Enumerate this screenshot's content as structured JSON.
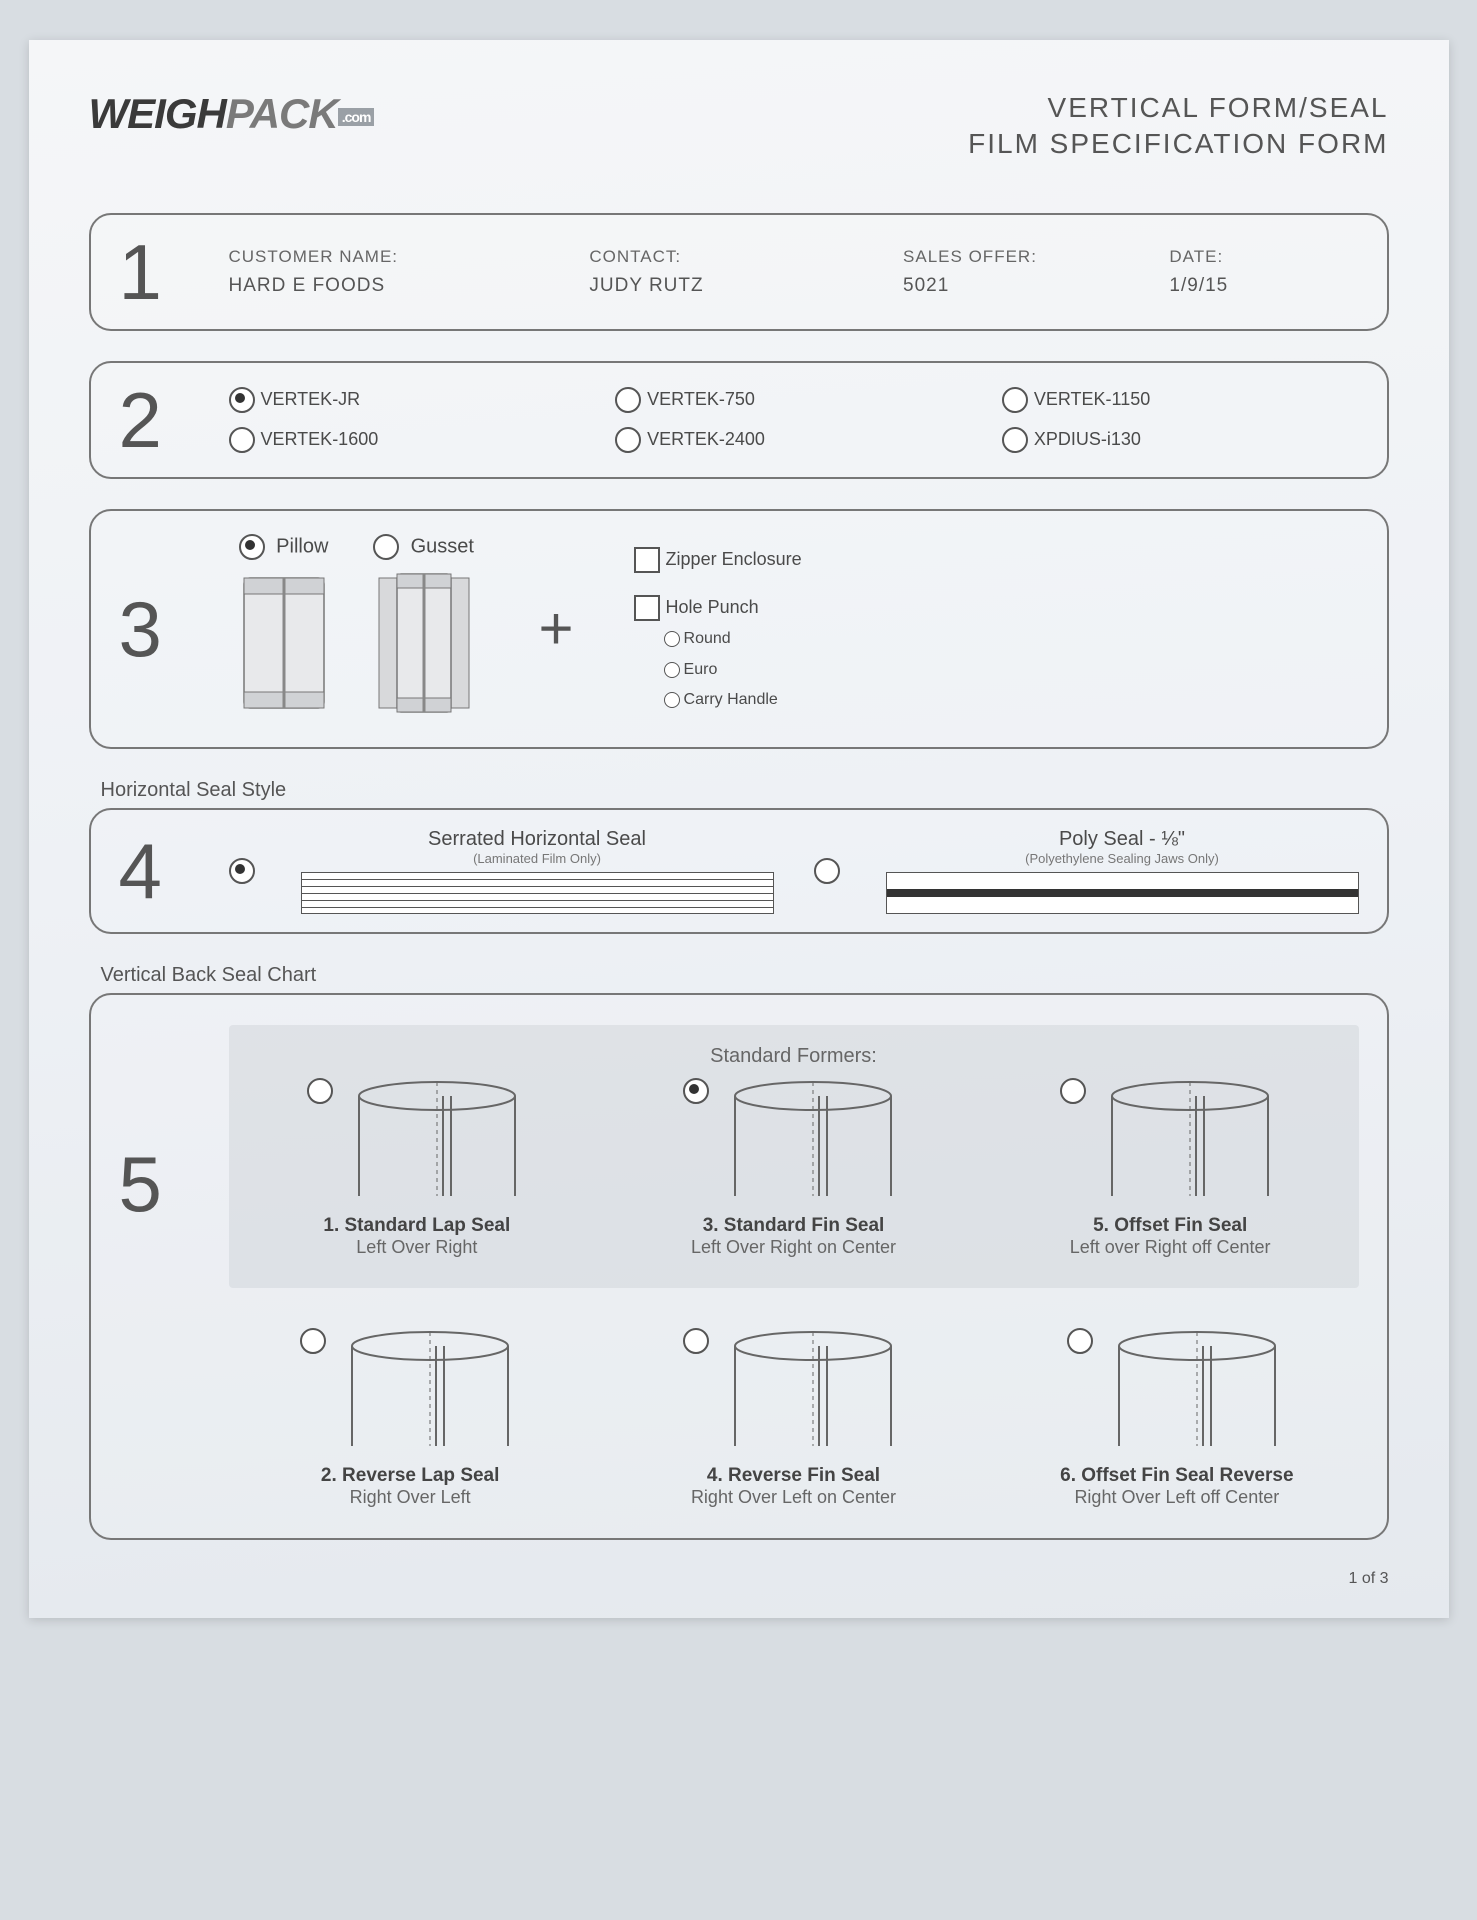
{
  "header": {
    "logo_part1": "WEIGH",
    "logo_part2": "PACK",
    "logo_suffix": ".com",
    "title_line1": "VERTICAL FORM/SEAL",
    "title_line2": "FILM SPECIFICATION FORM"
  },
  "section1": {
    "num": "1",
    "customer_label": "CUSTOMER NAME:",
    "customer_value": "HARD E FOODS",
    "contact_label": "CONTACT:",
    "contact_value": "JUDY RUTZ",
    "sales_label": "SALES OFFER:",
    "sales_value": "5021",
    "date_label": "DATE:",
    "date_value": "1/9/15"
  },
  "section2": {
    "num": "2",
    "options": [
      {
        "label": "VERTEK-JR",
        "checked": true
      },
      {
        "label": "VERTEK-750",
        "checked": false
      },
      {
        "label": "VERTEK-1150",
        "checked": false
      },
      {
        "label": "VERTEK-1600",
        "checked": false
      },
      {
        "label": "VERTEK-2400",
        "checked": false
      },
      {
        "label": "XPDIUS-i130",
        "checked": false
      }
    ]
  },
  "section3": {
    "num": "3",
    "pillow_label": "Pillow",
    "pillow_checked": true,
    "gusset_label": "Gusset",
    "gusset_checked": false,
    "zipper_label": "Zipper Enclosure",
    "hole_label": "Hole Punch",
    "hole_opts": [
      "Round",
      "Euro",
      "Carry Handle"
    ]
  },
  "section4": {
    "heading": "Horizontal Seal Style",
    "num": "4",
    "serrated_title": "Serrated Horizontal Seal",
    "serrated_sub": "(Laminated Film Only)",
    "serrated_checked": true,
    "poly_title": "Poly Seal - ⅛\"",
    "poly_sub": "(Polyethylene Sealing Jaws Only)",
    "poly_checked": false
  },
  "section5": {
    "heading": "Vertical Back Seal Chart",
    "num": "5",
    "std_label": "Standard Formers:",
    "formers": [
      {
        "title": "1. Standard Lap Seal",
        "sub": "Left Over Right",
        "checked": false
      },
      {
        "title": "3. Standard Fin Seal",
        "sub": "Left Over Right on Center",
        "checked": true
      },
      {
        "title": "5. Offset Fin Seal",
        "sub": "Left over Right off Center",
        "checked": false
      },
      {
        "title": "2. Reverse Lap Seal",
        "sub": "Right Over Left",
        "checked": false
      },
      {
        "title": "4. Reverse Fin Seal",
        "sub": "Right Over Left on Center",
        "checked": false
      },
      {
        "title": "6. Offset Fin Seal Reverse",
        "sub": "Right Over Left off Center",
        "checked": false
      }
    ]
  },
  "footer": {
    "page": "1 of 3"
  }
}
